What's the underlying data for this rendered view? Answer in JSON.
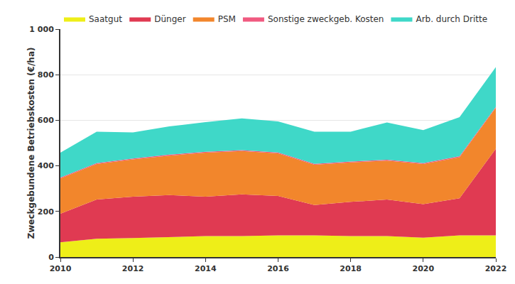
{
  "chart_data": {
    "type": "area",
    "stacked": true,
    "y_label": "Zweckgebundene Betriebskosten (€/ha)",
    "x": [
      2010,
      2011,
      2012,
      2013,
      2014,
      2015,
      2016,
      2017,
      2018,
      2019,
      2020,
      2021,
      2022
    ],
    "series": [
      {
        "name": "Saatgut",
        "color": "#eeee18",
        "values": [
          65,
          80,
          83,
          87,
          92,
          92,
          95,
          95,
          92,
          92,
          85,
          95,
          95
        ]
      },
      {
        "name": "Dünger",
        "color": "#e03a52",
        "values": [
          125,
          172,
          182,
          185,
          173,
          183,
          173,
          133,
          150,
          160,
          147,
          163,
          380
        ]
      },
      {
        "name": "PSM",
        "color": "#f2862c",
        "values": [
          155,
          156,
          163,
          173,
          193,
          190,
          187,
          177,
          173,
          171,
          176,
          180,
          180
        ]
      },
      {
        "name": "Sonstige zweckgeb. Kosten",
        "color": "#f05a80",
        "values": [
          4,
          4,
          4,
          4,
          4,
          4,
          4,
          4,
          4,
          4,
          4,
          4,
          4
        ]
      },
      {
        "name": "Arb. durch Dritte",
        "color": "#3fd8c8",
        "values": [
          109,
          138,
          115,
          124,
          130,
          139,
          136,
          141,
          131,
          163,
          145,
          172,
          174
        ]
      }
    ],
    "xlim": [
      2010,
      2022
    ],
    "xticks": [
      2010,
      2012,
      2014,
      2016,
      2018,
      2020,
      2022
    ],
    "ylim": [
      0,
      1000
    ],
    "yticks": [
      0,
      200,
      400,
      600,
      800,
      {
        "value": 1000,
        "label": "1 000"
      }
    ],
    "grid": true,
    "legend": "top"
  }
}
